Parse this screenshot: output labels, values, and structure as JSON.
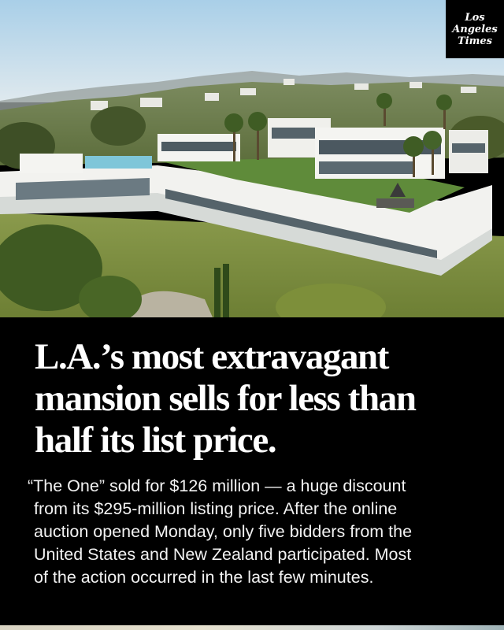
{
  "logo": {
    "line1": "Los",
    "line2": "Angeles",
    "line3": "Times"
  },
  "headline": {
    "line1": "L.A.’s most extravagant",
    "line2": "mansion sells for less than",
    "line3": "half its list price."
  },
  "body": {
    "line1": "“The One” sold for $126 million — a huge discount",
    "line2": "from its $295-million listing price. After the online",
    "line3": "auction opened Monday, only five bidders from the",
    "line4": "United States and New Zealand participated. Most",
    "line5": "of the action occurred in the last few minutes."
  },
  "colors": {
    "background": "#000000",
    "text": "#ffffff",
    "sky": "#b9d6ea",
    "lawn": "#5f8b3a"
  }
}
